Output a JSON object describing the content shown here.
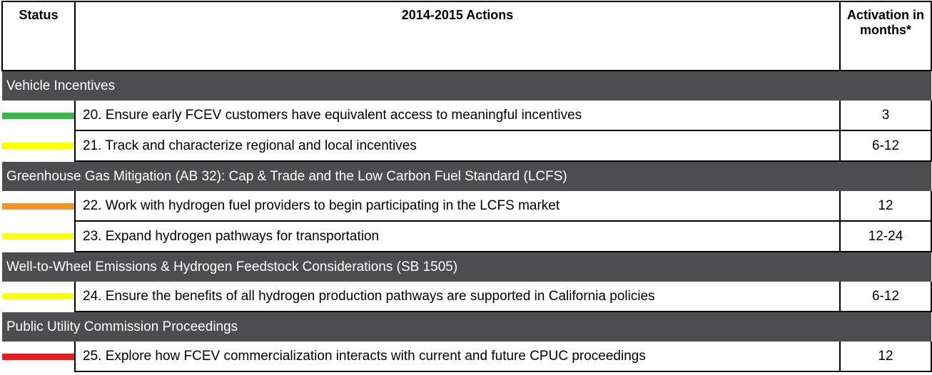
{
  "header": [
    "Status",
    "2014-2015 Actions",
    "Activation in months*"
  ],
  "sections": [
    {
      "title": "Vehicle Incentives",
      "items": [
        {
          "color": "#3cb44b",
          "action": "20. Ensure early FCEV customers have equivalent access to meaningful incentives",
          "activation": "3"
        },
        {
          "color": "#ffff00",
          "action": "21. Track and characterize regional and local incentives",
          "activation": "6-12"
        }
      ]
    },
    {
      "title": "Greenhouse Gas Mitigation (AB 32): Cap & Trade and the Low Carbon Fuel Standard (LCFS)",
      "items": [
        {
          "color": "#f7941d",
          "action": "22. Work with hydrogen fuel providers to begin participating in the LCFS market",
          "activation": "12"
        },
        {
          "color": "#ffff00",
          "action": "23. Expand hydrogen pathways for transportation",
          "activation": "12-24"
        }
      ]
    },
    {
      "title": "Well-to-Wheel Emissions & Hydrogen Feedstock Considerations (SB 1505)",
      "items": [
        {
          "color": "#ffff00",
          "action": "24. Ensure the benefits of all hydrogen production pathways are supported in California policies",
          "activation": "6-12"
        }
      ]
    },
    {
      "title": "Public Utility Commission Proceedings",
      "items": [
        {
          "color": "#e31e24",
          "action": "25. Explore how FCEV commercialization interacts with current and future CPUC proceedings",
          "activation": "12"
        }
      ]
    }
  ]
}
